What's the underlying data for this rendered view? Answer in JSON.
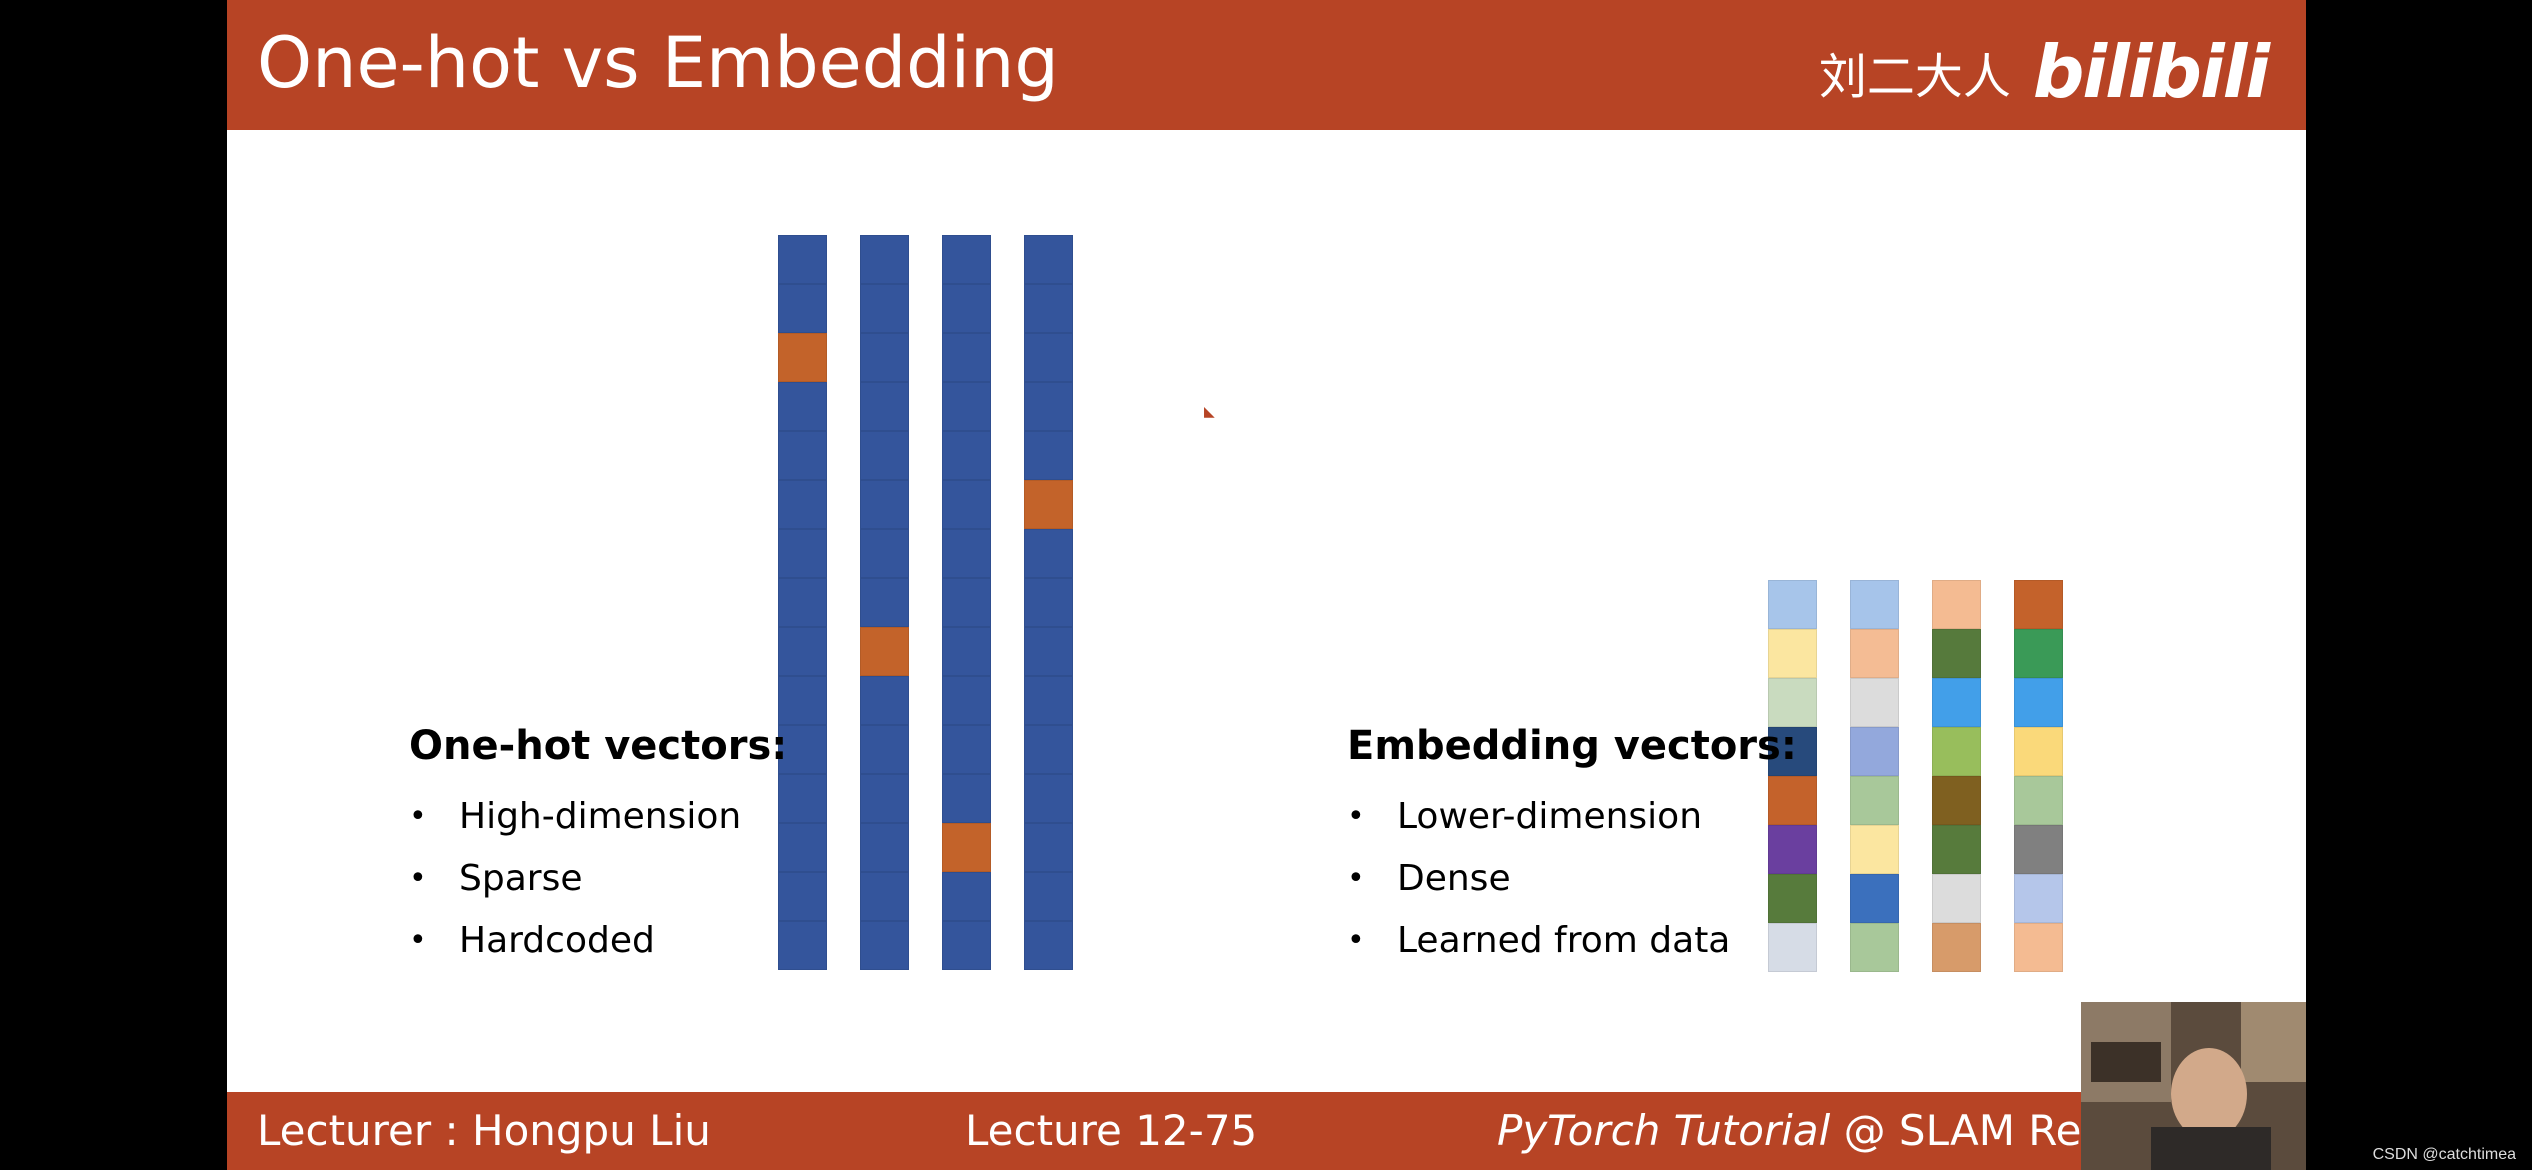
{
  "slide": {
    "title": "One-hot vs Embedding",
    "brand_cn": "刘二大人",
    "brand_logo": "bilibili"
  },
  "footer": {
    "lecturer": "Lecturer : Hongpu Liu",
    "lecture": "Lecture 12-75",
    "course_italic": "PyTorch Tutorial",
    "course_rest": " @ SLAM Resea"
  },
  "onehot": {
    "heading": "One-hot vectors:",
    "items": [
      "High-dimension",
      "Sparse",
      "Hardcoded"
    ],
    "base_color": "#34559c",
    "hot_color": "#c3632a",
    "length": 15,
    "hot_index": [
      2,
      8,
      12,
      5
    ]
  },
  "embedding": {
    "heading": "Embedding vectors:",
    "items": [
      "Lower-dimension",
      "Dense",
      "Learned from data"
    ],
    "columns": [
      [
        "#a7c5ea",
        "#fbe6a0",
        "#c9dbbf",
        "#274a7c",
        "#c4622b",
        "#6a3f9f",
        "#577b3c",
        "#d6dce6"
      ],
      [
        "#a6c4ea",
        "#f4bc94",
        "#dcdcdc",
        "#93a8dc",
        "#a8c89a",
        "#fbe6a0",
        "#3b70bd",
        "#a8c89a"
      ],
      [
        "#f4bb92",
        "#567a3c",
        "#429fe9",
        "#98be5c",
        "#7f6020",
        "#577b3c",
        "#dcdcdc",
        "#d79b6a"
      ],
      [
        "#c4622b",
        "#3a9a57",
        "#429fe9",
        "#fad97a",
        "#a8c89a",
        "#808080",
        "#b5c6ea",
        "#f4bb92"
      ]
    ]
  },
  "video": {
    "label": "lecturer-webcam"
  },
  "watermark": "CSDN @catchtimea"
}
